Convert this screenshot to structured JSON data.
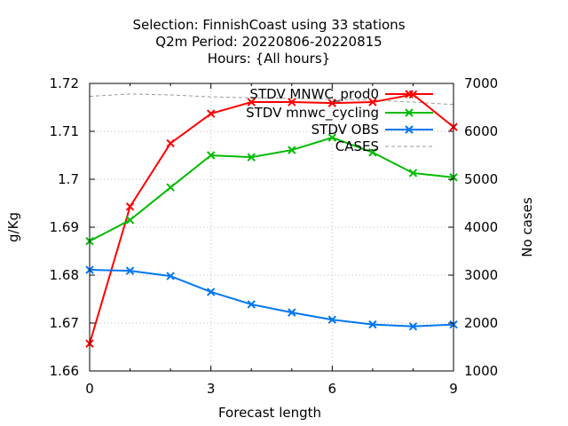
{
  "chart_data": {
    "type": "line",
    "title_lines": [
      "Selection: FinnishCoast using    33 stations",
      "Q2m   Period: 20220806-20220815",
      "Hours: {All hours}"
    ],
    "xlabel": "Forecast length",
    "ylabel": "g/Kg",
    "y2label": "No cases",
    "x": [
      0,
      1,
      2,
      3,
      4,
      5,
      6,
      7,
      8,
      9
    ],
    "xlim": [
      0,
      9
    ],
    "xticks": [
      "0",
      "3",
      "6",
      "9"
    ],
    "ylim": [
      1.66,
      1.72
    ],
    "yticks": [
      "1.66",
      "1.67",
      "1.68",
      "1.69",
      "1.7",
      "1.71",
      "1.72"
    ],
    "y2lim": [
      1000,
      7000
    ],
    "y2ticks": [
      "1000",
      "2000",
      "3000",
      "4000",
      "5000",
      "6000",
      "7000"
    ],
    "legend_position": "top-right",
    "series": [
      {
        "name": "STDV MNWC_prod0",
        "color": "#ff0000",
        "axis": "y1",
        "marker": "x",
        "values": [
          1.6657,
          1.6943,
          1.7075,
          1.7137,
          1.7161,
          1.7161,
          1.7159,
          1.7161,
          1.7177,
          1.7109
        ]
      },
      {
        "name": "STDV mnwc_cycling",
        "color": "#00bb00",
        "axis": "y1",
        "marker": "x",
        "values": [
          1.6871,
          1.6915,
          1.6983,
          1.705,
          1.7046,
          1.7061,
          1.7087,
          1.7056,
          1.7013,
          1.7004
        ]
      },
      {
        "name": "STDV OBS",
        "color": "#0077ee",
        "axis": "y1",
        "marker": "x",
        "values": [
          1.6811,
          1.6809,
          1.6798,
          1.6765,
          1.6739,
          1.6722,
          1.6707,
          1.6697,
          1.6693,
          1.6697
        ]
      },
      {
        "name": "CASES",
        "color": "#999999",
        "axis": "y2",
        "marker": "none",
        "dashed": true,
        "values": [
          6730,
          6780,
          6760,
          6720,
          6700,
          6690,
          6670,
          6650,
          6610,
          6560
        ]
      }
    ]
  }
}
